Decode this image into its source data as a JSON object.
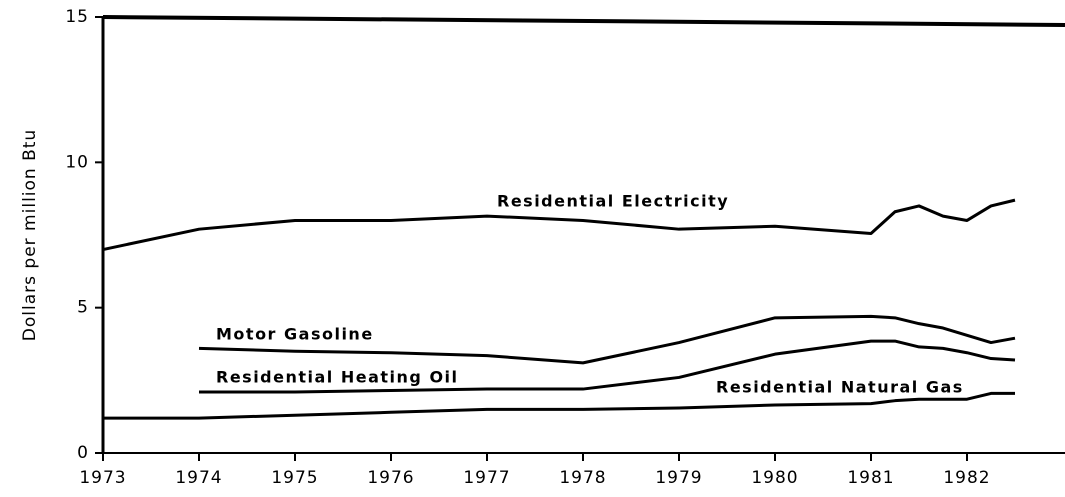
{
  "chart_data": {
    "type": "line",
    "y_label": "Dollars per million Btu",
    "x": [
      1973,
      1974,
      1975,
      1976,
      1977,
      1978,
      1979,
      1980,
      1981,
      1981.25,
      1981.5,
      1981.75,
      1982,
      1982.25,
      1982.5
    ],
    "xlim": [
      1973,
      1983
    ],
    "xticks": [
      1973,
      1974,
      1975,
      1976,
      1977,
      1978,
      1979,
      1980,
      1981,
      1982
    ],
    "ylim": [
      0,
      15
    ],
    "yticks": [
      0,
      5,
      10,
      15
    ],
    "series": [
      {
        "name": "Residential Electricity",
        "color": "#000000",
        "values": [
          7.0,
          7.7,
          8.0,
          8.0,
          8.15,
          8.0,
          7.7,
          7.8,
          7.55,
          8.3,
          8.5,
          8.15,
          8.0,
          8.5,
          8.7
        ]
      },
      {
        "name": "Motor Gasoline",
        "color": "#000000",
        "values": [
          null,
          3.6,
          3.5,
          3.45,
          3.35,
          3.1,
          3.8,
          4.65,
          4.7,
          4.65,
          4.45,
          4.3,
          4.05,
          3.8,
          3.95
        ]
      },
      {
        "name": "Residential Heating Oil",
        "color": "#000000",
        "values": [
          null,
          2.1,
          2.1,
          2.15,
          2.2,
          2.2,
          2.6,
          3.4,
          3.85,
          3.85,
          3.65,
          3.6,
          3.45,
          3.25,
          3.2
        ]
      },
      {
        "name": "Residential Natural Gas",
        "color": "#000000",
        "values": [
          1.2,
          1.2,
          1.3,
          1.4,
          1.5,
          1.5,
          1.55,
          1.65,
          1.7,
          1.8,
          1.85,
          1.85,
          1.85,
          2.05,
          2.05
        ]
      }
    ]
  }
}
